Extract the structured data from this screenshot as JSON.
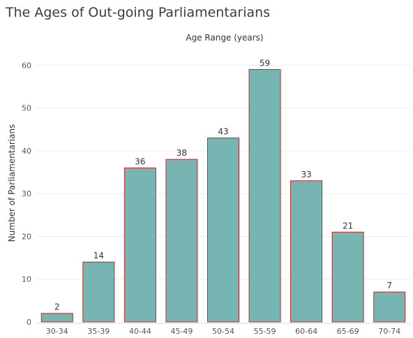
{
  "chart_data": {
    "type": "bar",
    "title": "The Ages of Out-going Parliamentarians",
    "xlabel": "Age Range (years)",
    "ylabel": "Number of Parliamentarians",
    "categories": [
      "30-34",
      "35-39",
      "40-44",
      "45-49",
      "50-54",
      "55-59",
      "60-64",
      "65-69",
      "70-74"
    ],
    "values": [
      2,
      14,
      36,
      38,
      43,
      59,
      33,
      21,
      7
    ],
    "yticks": [
      0,
      10,
      20,
      30,
      40,
      50,
      60
    ],
    "ylim": [
      0,
      63
    ],
    "grid": true,
    "bar_fill": "#76b5b1",
    "bar_stroke": "#c0282a"
  }
}
